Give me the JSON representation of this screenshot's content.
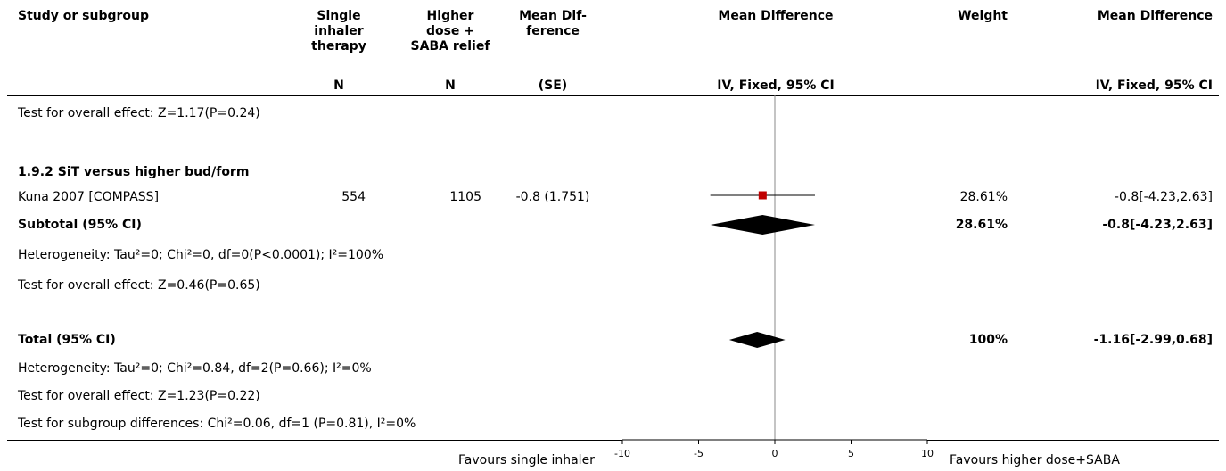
{
  "header": {
    "study": "Study or subgroup",
    "single": [
      "Single",
      "inhaler",
      "therapy"
    ],
    "higher": [
      "Higher",
      "dose +",
      "SABA relief"
    ],
    "md_se": [
      "Mean Dif-",
      "ference"
    ],
    "md_plot": "Mean Difference",
    "weight": "Weight",
    "md_text": "Mean Difference",
    "sub_n1": "N",
    "sub_n2": "N",
    "sub_se": "(SE)",
    "sub_plot": "IV, Fixed, 95% CI",
    "sub_text": "IV, Fixed, 95% CI"
  },
  "rows": {
    "r1": "Test for overall effect: Z=1.17(P=0.24)",
    "group": "1.9.2 SiT versus higher bud/form",
    "study": {
      "name": "Kuna 2007 [COMPASS]",
      "n1": "554",
      "n2": "1105",
      "md_se": "-0.8 (1.751)",
      "weight": "28.61%",
      "ci": "-0.8[-4.23,2.63]"
    },
    "subtotal": {
      "label": "Subtotal (95% CI)",
      "weight": "28.61%",
      "ci": "-0.8[-4.23,2.63]"
    },
    "het1": "Heterogeneity: Tau²=0; Chi²=0, df=0(P<0.0001); I²=100%",
    "effect1": "Test for overall effect: Z=0.46(P=0.65)",
    "total": {
      "label": "Total (95% CI)",
      "weight": "100%",
      "ci": "-1.16[-2.99,0.68]"
    },
    "het2": "Heterogeneity: Tau²=0; Chi²=0.84, df=2(P=0.66); I²=0%",
    "effect2": "Test for overall effect: Z=1.23(P=0.22)",
    "subgroup": "Test for subgroup differences: Chi²=0.06, df=1 (P=0.81), I²=0%"
  },
  "footer": {
    "left": "Favours single inhaler",
    "right": "Favours higher dose+SABA"
  },
  "chart_data": {
    "type": "forest",
    "xlim": [
      -10,
      10
    ],
    "ticks": [
      "-10",
      "-5",
      "0",
      "5",
      "10"
    ],
    "studies": [
      {
        "name": "Kuna 2007 [COMPASS]",
        "estimate": -0.8,
        "ci": [
          -4.23,
          2.63
        ],
        "weight": 28.61
      }
    ],
    "diamonds": [
      {
        "label": "Subtotal (95% CI)",
        "estimate": -0.8,
        "ci": [
          -4.23,
          2.63
        ]
      },
      {
        "label": "Total (95% CI)",
        "estimate": -1.16,
        "ci": [
          -2.99,
          0.68
        ]
      }
    ],
    "colors": {
      "study_marker": "#c00000",
      "diamond": "#000000",
      "line": "#000000"
    }
  }
}
